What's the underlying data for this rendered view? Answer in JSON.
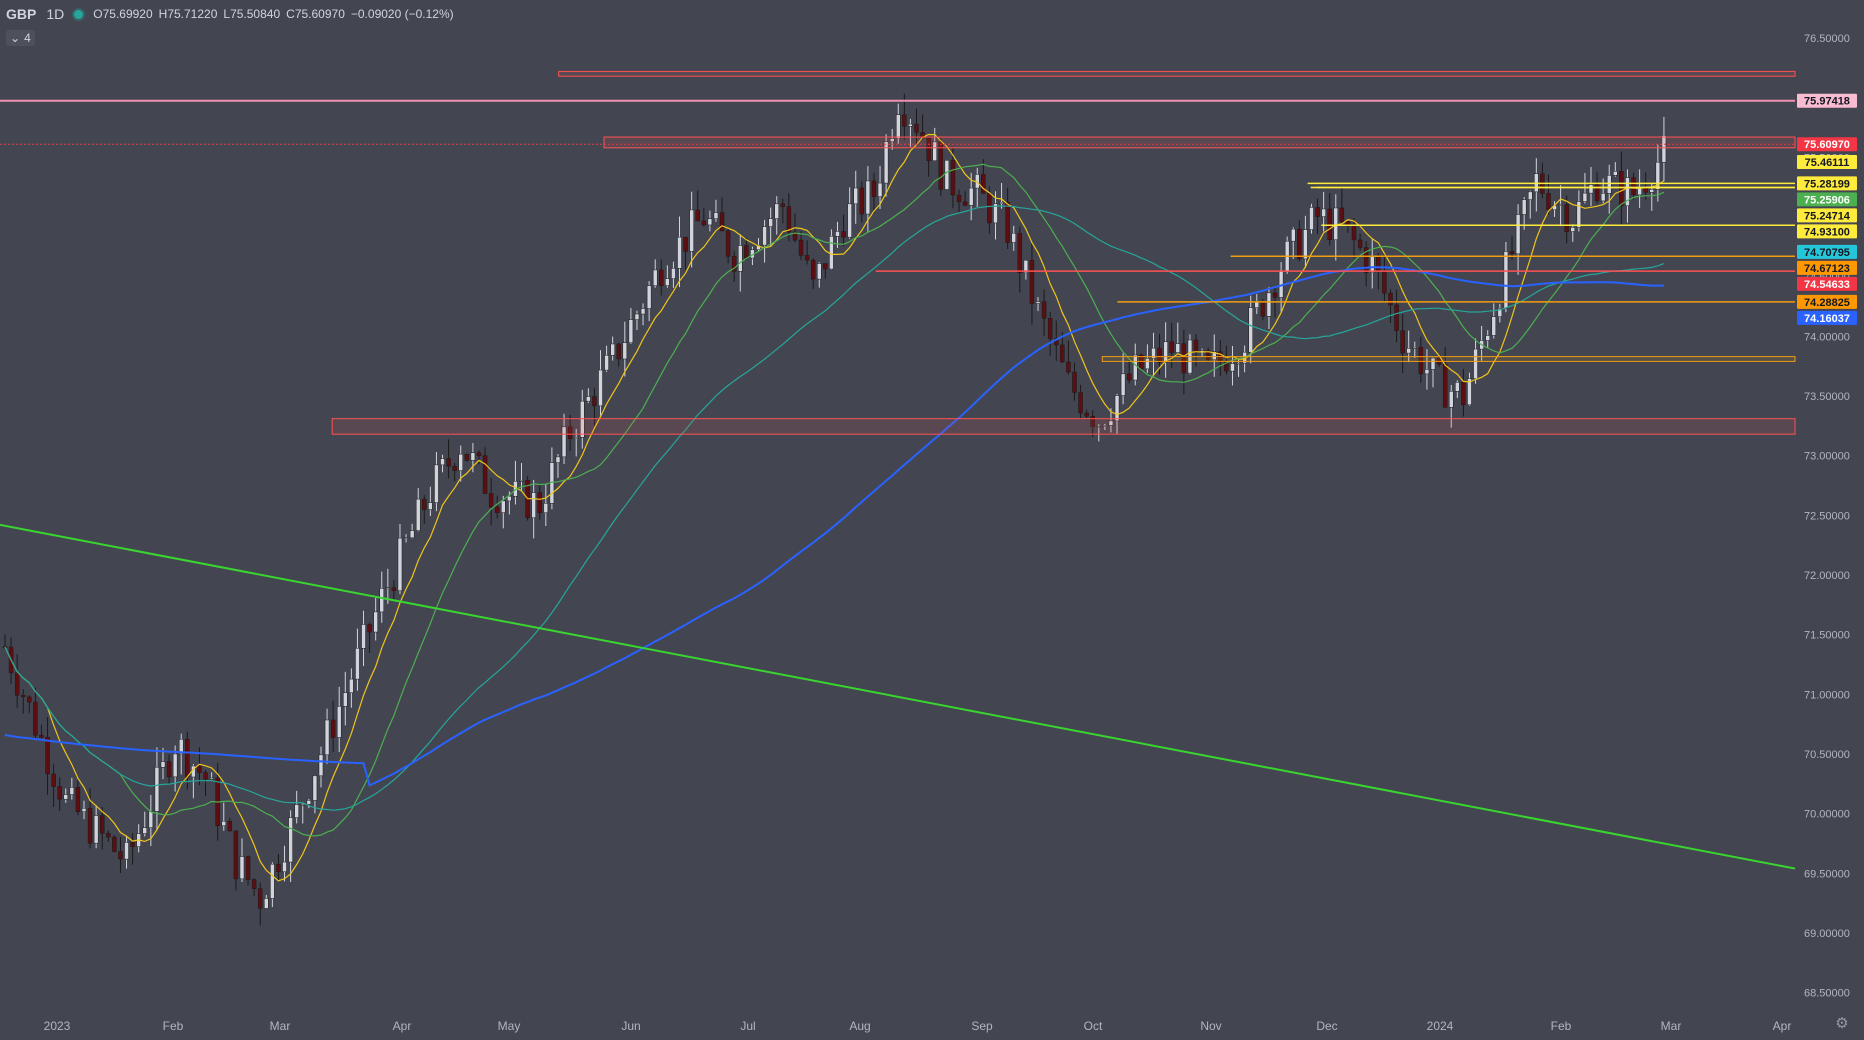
{
  "header": {
    "symbol": "GBP",
    "timeframe": "1D",
    "open_label": "O",
    "open": "75.69920",
    "high_label": "H",
    "high": "75.71220",
    "low_label": "L",
    "low": "75.50840",
    "close_label": "C",
    "close": "75.60970",
    "change": "−0.09020 (−0.12%)",
    "indicator_toggle_icon": "chevron-down-icon",
    "indicator_count": "4"
  },
  "colors": {
    "background": "#434651",
    "up_candle": "#d1d4dc",
    "down_candle": "#5c0f12",
    "ma_fast": "#f0c419",
    "ma_mid": "#4caf50",
    "ma_slow": "#26a69a",
    "ma_long": "#2962ff",
    "trendline": "#39d62f"
  },
  "chart_data": {
    "type": "candlestick",
    "y_axis": {
      "range": [
        68.3,
        76.6
      ],
      "ticks": [
        "76.50000",
        "76.00000",
        "75.50000",
        "75.00000",
        "74.50000",
        "74.00000",
        "73.50000",
        "73.00000",
        "72.50000",
        "72.00000",
        "71.50000",
        "71.00000",
        "70.50000",
        "70.00000",
        "69.50000",
        "69.00000",
        "68.50000"
      ]
    },
    "x_axis": {
      "labels": [
        "2023",
        "Feb",
        "Mar",
        "Apr",
        "May",
        "Jun",
        "Jul",
        "Aug",
        "Sep",
        "Oct",
        "Nov",
        "Dec",
        "2024",
        "Feb",
        "Mar",
        "Apr"
      ]
    },
    "price_path": [
      [
        0,
        71.4
      ],
      [
        10,
        70.1
      ],
      [
        20,
        69.6
      ],
      [
        28,
        70.6
      ],
      [
        33,
        70.3
      ],
      [
        38,
        69.6
      ],
      [
        42,
        69.3
      ],
      [
        48,
        70.0
      ],
      [
        55,
        70.9
      ],
      [
        62,
        71.8
      ],
      [
        70,
        72.7
      ],
      [
        75,
        73.1
      ],
      [
        80,
        72.7
      ],
      [
        88,
        72.6
      ],
      [
        93,
        73.2
      ],
      [
        100,
        73.8
      ],
      [
        108,
        74.6
      ],
      [
        115,
        75.0
      ],
      [
        120,
        74.7
      ],
      [
        128,
        75.1
      ],
      [
        133,
        74.4
      ],
      [
        138,
        75.0
      ],
      [
        143,
        75.2
      ],
      [
        147,
        76.0
      ],
      [
        150,
        75.8
      ],
      [
        155,
        75.3
      ],
      [
        160,
        75.2
      ],
      [
        165,
        74.9
      ],
      [
        170,
        74.2
      ],
      [
        175,
        73.6
      ],
      [
        180,
        73.3
      ],
      [
        186,
        73.7
      ],
      [
        192,
        73.9
      ],
      [
        198,
        73.7
      ],
      [
        204,
        74.0
      ],
      [
        210,
        74.6
      ],
      [
        216,
        75.0
      ],
      [
        220,
        74.9
      ],
      [
        225,
        74.6
      ],
      [
        230,
        74.0
      ],
      [
        236,
        73.6
      ],
      [
        240,
        73.5
      ],
      [
        246,
        74.4
      ],
      [
        252,
        75.3
      ],
      [
        258,
        75.0
      ],
      [
        262,
        75.3
      ],
      [
        268,
        75.2
      ],
      [
        274,
        75.6
      ]
    ],
    "moving_averages": [
      {
        "period": "fast",
        "color": "#f0c419",
        "last": 75.46111
      },
      {
        "period": "mid",
        "color": "#4caf50",
        "last": 75.25906
      },
      {
        "period": "slow",
        "color": "#26a69a",
        "last": 74.70795
      },
      {
        "period": "long",
        "color": "#2962ff",
        "last": 74.16037
      }
    ],
    "zones": [
      {
        "from": 76.18,
        "to": 76.22,
        "x_start": 0.37,
        "color": "#ff5252"
      },
      {
        "from": 75.58,
        "to": 75.67,
        "x_start": 0.4,
        "color": "#ff5252"
      },
      {
        "from": 73.18,
        "to": 73.31,
        "x_start": 0.22,
        "color": "#ff5252"
      },
      {
        "from": 73.79,
        "to": 73.83,
        "x_start": 0.73,
        "color": "#f29c11"
      }
    ],
    "hlines": [
      {
        "value": 75.97418,
        "color": "#f48fb1",
        "x_start": 0.0
      },
      {
        "value": 75.28199,
        "color": "#ffeb3b",
        "x_start": 0.866
      },
      {
        "value": 75.24714,
        "color": "#ffeb3b",
        "x_start": 0.872
      },
      {
        "value": 75.24714,
        "color": "#ffeb3b",
        "x_start": 0.868
      },
      {
        "value": 74.931,
        "color": "#ffeb3b",
        "x_start": 0.875
      },
      {
        "value": 74.67123,
        "color": "#f29c11",
        "x_start": 0.815
      },
      {
        "value": 74.54633,
        "color": "#ff5252",
        "x_start": 0.58
      },
      {
        "value": 74.28825,
        "color": "#f29c11",
        "x_start": 0.74
      }
    ],
    "trendline": {
      "start_value": 72.42,
      "end_value": 69.54,
      "color": "#39d62f"
    },
    "price_labels": [
      {
        "value": 75.97418,
        "text": "75.97418",
        "bg": "#f8bbd0",
        "fg": "#131722"
      },
      {
        "value": 75.6097,
        "text": "75.60970",
        "bg": "#f23645",
        "fg": "#ffffff"
      },
      {
        "value": 75.46111,
        "text": "75.46111",
        "bg": "#ffeb3b",
        "fg": "#131722"
      },
      {
        "value": 75.28199,
        "text": "75.28199",
        "bg": "#ffeb3b",
        "fg": "#131722"
      },
      {
        "value": 75.25906,
        "text": "75.25906",
        "bg": "#4caf50",
        "fg": "#ffffff"
      },
      {
        "value": 75.24714,
        "text": "75.24714",
        "bg": "#ffeb3b",
        "fg": "#131722"
      },
      {
        "value": 74.931,
        "text": "74.93100",
        "bg": "#ffeb3b",
        "fg": "#131722"
      },
      {
        "value": 74.70795,
        "text": "74.70795",
        "bg": "#26c6da",
        "fg": "#131722"
      },
      {
        "value": 74.67123,
        "text": "74.67123",
        "bg": "#ff9800",
        "fg": "#131722"
      },
      {
        "value": 74.54633,
        "text": "74.54633",
        "bg": "#f23645",
        "fg": "#ffffff"
      },
      {
        "value": 74.28825,
        "text": "74.28825",
        "bg": "#ff9800",
        "fg": "#131722"
      },
      {
        "value": 74.16037,
        "text": "74.16037",
        "bg": "#2962ff",
        "fg": "#ffffff"
      }
    ]
  }
}
